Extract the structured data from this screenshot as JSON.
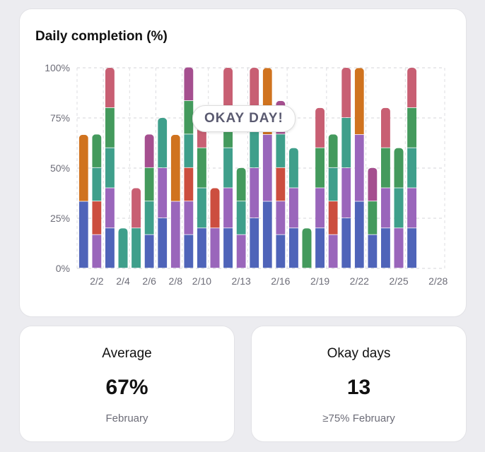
{
  "chart_data": {
    "type": "bar",
    "stacked": true,
    "title": "Daily completion (%)",
    "ylim": [
      0,
      100
    ],
    "yticks": [
      "0%",
      "25%",
      "50%",
      "75%",
      "100%"
    ],
    "ytick_values": [
      0,
      25,
      50,
      75,
      100
    ],
    "xtick_labels": [
      "2/2",
      "2/4",
      "2/6",
      "2/8",
      "2/10",
      "2/13",
      "2/16",
      "2/19",
      "2/22",
      "2/25",
      "2/28"
    ],
    "xtick_days": [
      2,
      4,
      6,
      8,
      10,
      13,
      16,
      19,
      22,
      25,
      28
    ],
    "days": 28,
    "annotation": "OKAY DAY!",
    "colors": {
      "blue": "#4f64b9",
      "purple": "#9a66bb",
      "red": "#cc4e3f",
      "teal": "#3f9f8b",
      "green": "#449a5d",
      "magenta": "#a54f8f",
      "pink": "#c85f73",
      "orange": "#d0731f"
    },
    "bars": [
      {
        "day": 1,
        "segments": [
          [
            "blue",
            33.3
          ],
          [
            "orange",
            33.3
          ]
        ]
      },
      {
        "day": 2,
        "segments": [
          [
            "purple",
            16.7
          ],
          [
            "red",
            16.7
          ],
          [
            "teal",
            16.7
          ],
          [
            "green",
            16.7
          ]
        ]
      },
      {
        "day": 3,
        "segments": [
          [
            "blue",
            20
          ],
          [
            "purple",
            20
          ],
          [
            "teal",
            20
          ],
          [
            "green",
            20
          ],
          [
            "pink",
            20
          ]
        ]
      },
      {
        "day": 4,
        "segments": [
          [
            "teal",
            20
          ]
        ]
      },
      {
        "day": 5,
        "segments": [
          [
            "teal",
            20
          ],
          [
            "pink",
            20
          ]
        ]
      },
      {
        "day": 6,
        "segments": [
          [
            "blue",
            16.7
          ],
          [
            "teal",
            16.7
          ],
          [
            "green",
            16.7
          ],
          [
            "magenta",
            16.7
          ]
        ]
      },
      {
        "day": 7,
        "segments": [
          [
            "blue",
            25
          ],
          [
            "purple",
            25
          ],
          [
            "teal",
            25
          ]
        ]
      },
      {
        "day": 8,
        "segments": [
          [
            "purple",
            33.3
          ],
          [
            "orange",
            33.3
          ]
        ]
      },
      {
        "day": 9,
        "segments": [
          [
            "blue",
            16.7
          ],
          [
            "purple",
            16.7
          ],
          [
            "red",
            16.7
          ],
          [
            "teal",
            16.7
          ],
          [
            "green",
            16.7
          ],
          [
            "magenta",
            16.7
          ]
        ]
      },
      {
        "day": 10,
        "segments": [
          [
            "blue",
            20
          ],
          [
            "teal",
            20
          ],
          [
            "green",
            20
          ],
          [
            "pink",
            20
          ]
        ]
      },
      {
        "day": 11,
        "segments": [
          [
            "purple",
            20
          ],
          [
            "red",
            20
          ]
        ]
      },
      {
        "day": 12,
        "segments": [
          [
            "blue",
            20
          ],
          [
            "purple",
            20
          ],
          [
            "teal",
            20
          ],
          [
            "green",
            20
          ],
          [
            "pink",
            20
          ]
        ]
      },
      {
        "day": 13,
        "segments": [
          [
            "purple",
            16.7
          ],
          [
            "teal",
            16.7
          ],
          [
            "green",
            16.7
          ]
        ]
      },
      {
        "day": 14,
        "segments": [
          [
            "blue",
            25
          ],
          [
            "purple",
            25
          ],
          [
            "teal",
            25
          ],
          [
            "pink",
            25
          ]
        ]
      },
      {
        "day": 15,
        "segments": [
          [
            "blue",
            33.3
          ],
          [
            "purple",
            33.3
          ],
          [
            "orange",
            33.3
          ]
        ]
      },
      {
        "day": 16,
        "segments": [
          [
            "blue",
            16.7
          ],
          [
            "purple",
            16.7
          ],
          [
            "red",
            16.7
          ],
          [
            "teal",
            16.7
          ],
          [
            "magenta",
            16.7
          ]
        ]
      },
      {
        "day": 17,
        "segments": [
          [
            "blue",
            20
          ],
          [
            "purple",
            20
          ],
          [
            "teal",
            20
          ]
        ]
      },
      {
        "day": 18,
        "segments": [
          [
            "green",
            20
          ]
        ]
      },
      {
        "day": 19,
        "segments": [
          [
            "blue",
            20
          ],
          [
            "purple",
            20
          ],
          [
            "green",
            20
          ],
          [
            "pink",
            20
          ]
        ]
      },
      {
        "day": 20,
        "segments": [
          [
            "purple",
            16.7
          ],
          [
            "red",
            16.7
          ],
          [
            "teal",
            16.7
          ],
          [
            "green",
            16.7
          ]
        ]
      },
      {
        "day": 21,
        "segments": [
          [
            "blue",
            25
          ],
          [
            "purple",
            25
          ],
          [
            "teal",
            25
          ],
          [
            "pink",
            25
          ]
        ]
      },
      {
        "day": 22,
        "segments": [
          [
            "blue",
            33.3
          ],
          [
            "purple",
            33.3
          ],
          [
            "orange",
            33.3
          ]
        ]
      },
      {
        "day": 23,
        "segments": [
          [
            "blue",
            16.7
          ],
          [
            "green",
            16.7
          ],
          [
            "magenta",
            16.7
          ]
        ]
      },
      {
        "day": 24,
        "segments": [
          [
            "blue",
            20
          ],
          [
            "purple",
            20
          ],
          [
            "green",
            20
          ],
          [
            "pink",
            20
          ]
        ]
      },
      {
        "day": 25,
        "segments": [
          [
            "purple",
            20
          ],
          [
            "teal",
            20
          ],
          [
            "green",
            20
          ]
        ]
      },
      {
        "day": 26,
        "segments": [
          [
            "blue",
            20
          ],
          [
            "purple",
            20
          ],
          [
            "teal",
            20
          ],
          [
            "green",
            20
          ],
          [
            "pink",
            20
          ]
        ]
      }
    ]
  },
  "stats": {
    "average": {
      "label": "Average",
      "value": "67%",
      "sub": "February"
    },
    "okay_days": {
      "label": "Okay days",
      "value": "13",
      "sub": "≥75% February"
    }
  }
}
